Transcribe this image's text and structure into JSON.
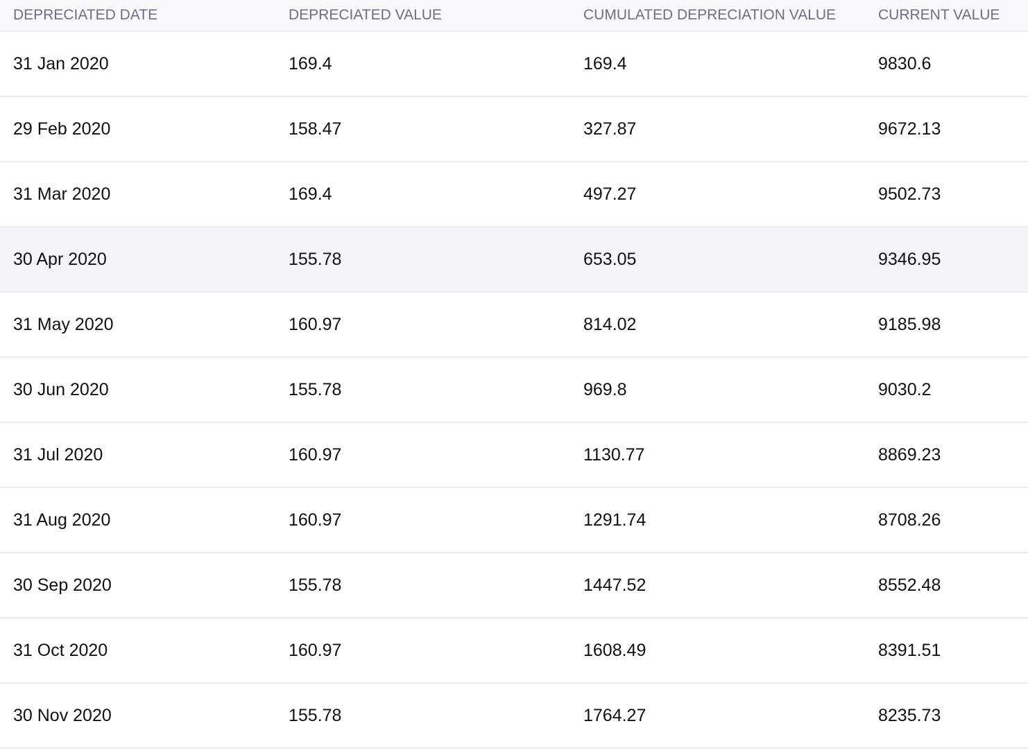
{
  "table": {
    "columns": [
      "DEPRECIATED DATE",
      "DEPRECIATED VALUE",
      "CUMULATED DEPRECIATION VALUE",
      "CURRENT VALUE"
    ],
    "highlighted_row": 3,
    "rows": [
      [
        "31 Jan 2020",
        "169.4",
        "169.4",
        "9830.6"
      ],
      [
        "29 Feb 2020",
        "158.47",
        "327.87",
        "9672.13"
      ],
      [
        "31 Mar 2020",
        "169.4",
        "497.27",
        "9502.73"
      ],
      [
        "30 Apr 2020",
        "155.78",
        "653.05",
        "9346.95"
      ],
      [
        "31 May 2020",
        "160.97",
        "814.02",
        "9185.98"
      ],
      [
        "30 Jun 2020",
        "155.78",
        "969.8",
        "9030.2"
      ],
      [
        "31 Jul 2020",
        "160.97",
        "1130.77",
        "8869.23"
      ],
      [
        "31 Aug 2020",
        "160.97",
        "1291.74",
        "8708.26"
      ],
      [
        "30 Sep 2020",
        "155.78",
        "1447.52",
        "8552.48"
      ],
      [
        "31 Oct 2020",
        "160.97",
        "1608.49",
        "8391.51"
      ],
      [
        "30 Nov 2020",
        "155.78",
        "1764.27",
        "8235.73"
      ]
    ]
  }
}
